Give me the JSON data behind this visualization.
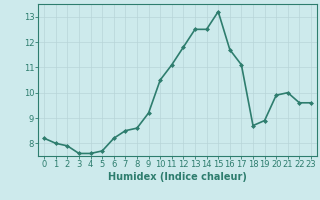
{
  "x": [
    0,
    1,
    2,
    3,
    4,
    5,
    6,
    7,
    8,
    9,
    10,
    11,
    12,
    13,
    14,
    15,
    16,
    17,
    18,
    19,
    20,
    21,
    22,
    23
  ],
  "y": [
    8.2,
    8.0,
    7.9,
    7.6,
    7.6,
    7.7,
    8.2,
    8.5,
    8.6,
    9.2,
    10.5,
    11.1,
    11.8,
    12.5,
    12.5,
    13.2,
    11.7,
    11.1,
    8.7,
    8.9,
    9.9,
    10.0,
    9.6,
    9.6
  ],
  "xlabel": "Humidex (Indice chaleur)",
  "ylim": [
    7.5,
    13.5
  ],
  "xlim": [
    -0.5,
    23.5
  ],
  "yticks": [
    8,
    9,
    10,
    11,
    12,
    13
  ],
  "xticks": [
    0,
    1,
    2,
    3,
    4,
    5,
    6,
    7,
    8,
    9,
    10,
    11,
    12,
    13,
    14,
    15,
    16,
    17,
    18,
    19,
    20,
    21,
    22,
    23
  ],
  "line_color": "#2e7d6e",
  "marker": "D",
  "marker_size": 2.0,
  "bg_color": "#cdeaec",
  "grid_color": "#b8d5d8",
  "axis_color": "#2e7d6e",
  "tick_label_color": "#2e7d6e",
  "xlabel_color": "#2e7d6e",
  "xlabel_fontsize": 7,
  "tick_fontsize": 6,
  "line_width": 1.2
}
